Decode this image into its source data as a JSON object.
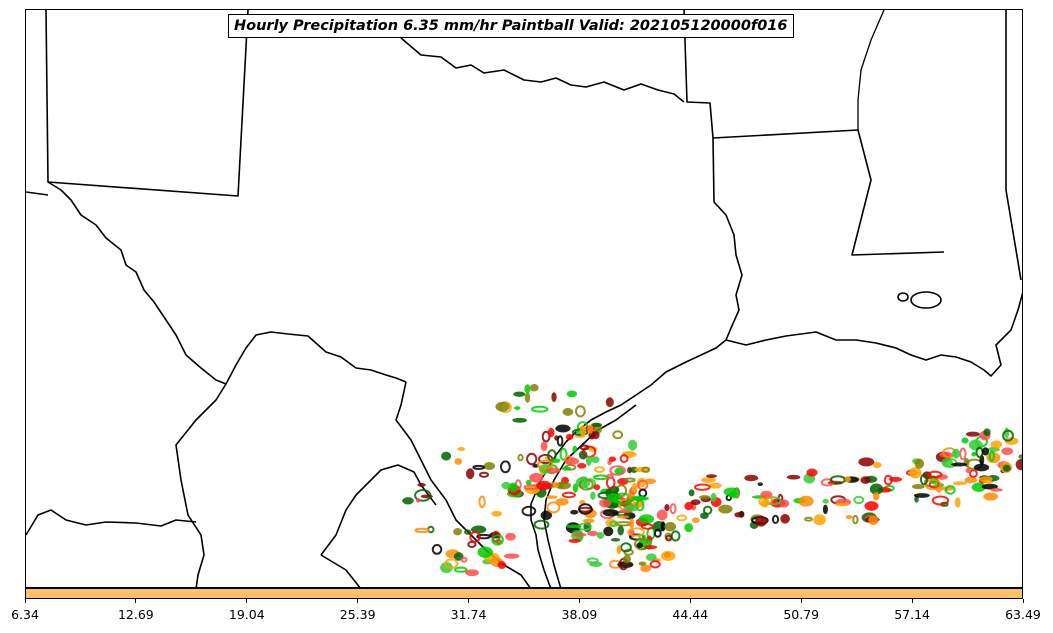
{
  "title": "Hourly Precipitation 6.35 mm/hr Paintball Valid: 202105120000f016",
  "colorbar": {
    "ticks": [
      "6.34",
      "12.69",
      "19.04",
      "25.39",
      "31.74",
      "38.09",
      "44.44",
      "50.79",
      "57.14",
      "63.49"
    ],
    "range": [
      6.34,
      63.49
    ],
    "fill_color": "#fdc266"
  },
  "map": {
    "region": "Texas / Louisiana / northern Mexico",
    "boundaries_color": "#000000",
    "paintball_colors": [
      "#ff0000",
      "#8b0000",
      "#ff8c00",
      "#ffa500",
      "#00cc00",
      "#006400",
      "#808000",
      "#ff4d4d",
      "#32cd32",
      "#000000"
    ]
  }
}
